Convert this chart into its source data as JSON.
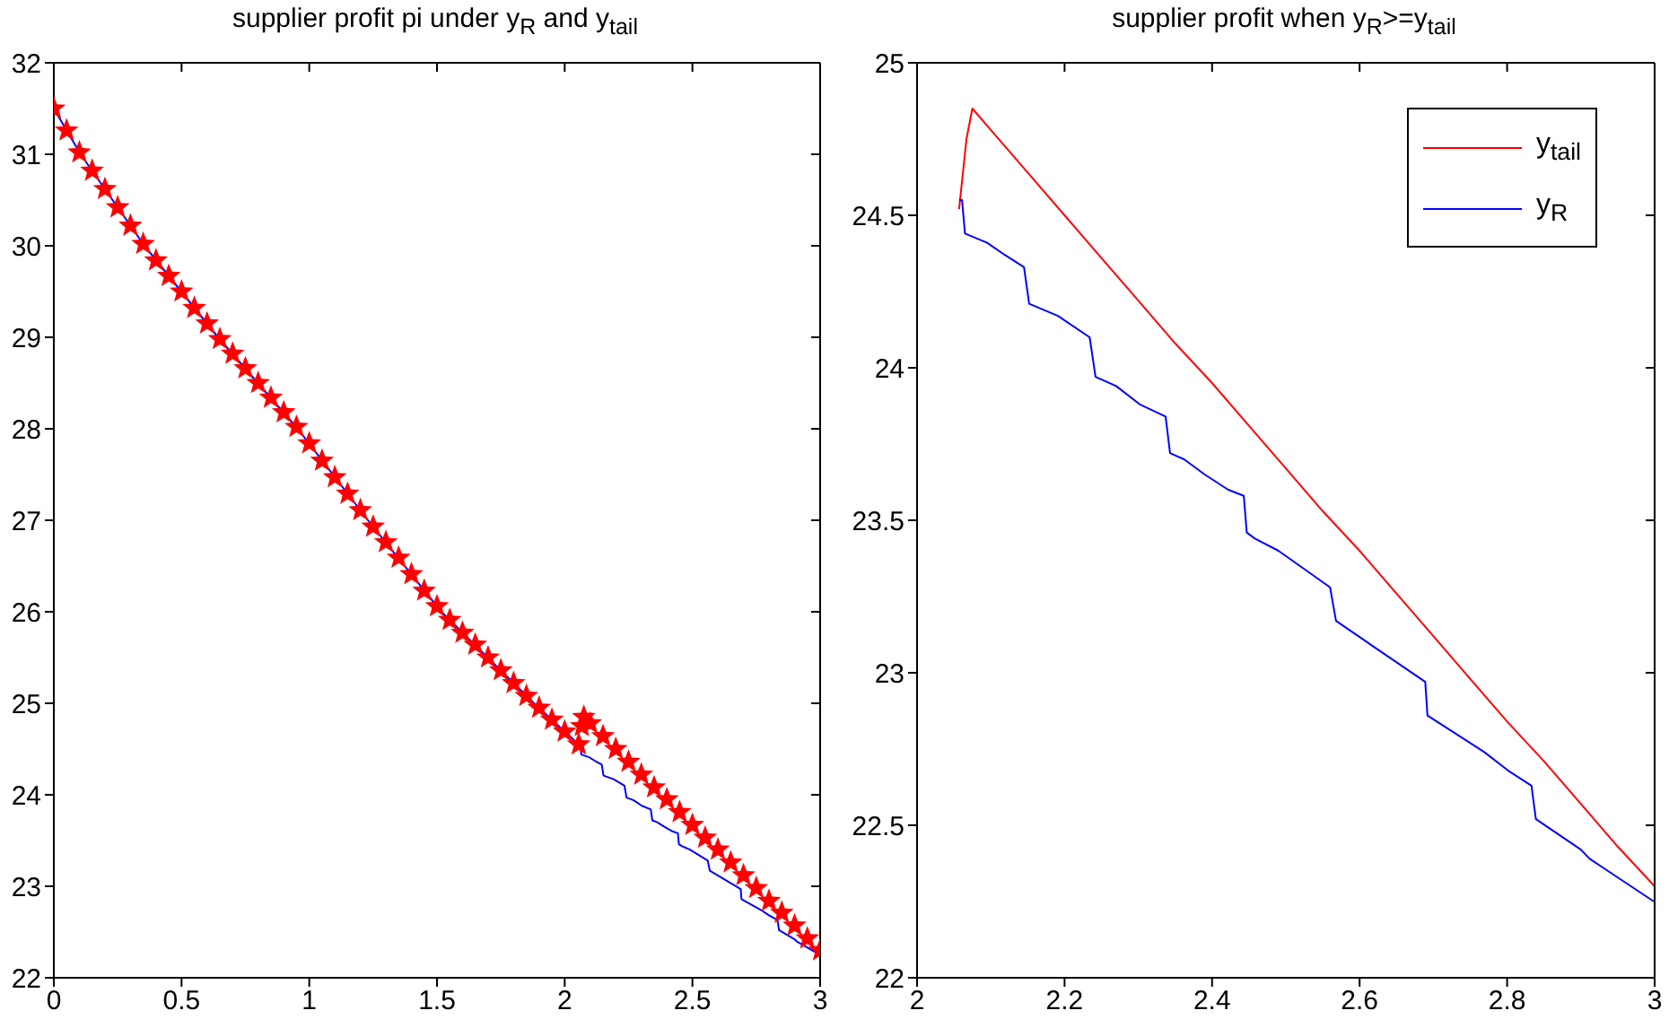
{
  "chart_data": [
    {
      "type": "line",
      "title": "supplier profit pi under y$_{R}$ and y$_{tail}$",
      "xlim": [
        0,
        3
      ],
      "xticks": [
        0,
        0.5,
        1,
        1.5,
        2,
        2.5,
        3
      ],
      "ylim": [
        22,
        32
      ],
      "yticks": [
        22,
        23,
        24,
        25,
        26,
        27,
        28,
        29,
        30,
        31,
        32
      ],
      "series": [
        {
          "type": "scatter",
          "marker": "star",
          "color": "#ff0000",
          "x": [
            0,
            0.05,
            0.1,
            0.15,
            0.2,
            0.25,
            0.3,
            0.35,
            0.4,
            0.45,
            0.5,
            0.55,
            0.6,
            0.65,
            0.7,
            0.75,
            0.8,
            0.85,
            0.9,
            0.95,
            1.0,
            1.05,
            1.1,
            1.15,
            1.2,
            1.25,
            1.3,
            1.35,
            1.4,
            1.45,
            1.5,
            1.55,
            1.6,
            1.65,
            1.7,
            1.75,
            1.8,
            1.85,
            1.9,
            1.95,
            2.0,
            2.055,
            2.067,
            2.075,
            2.1,
            2.15,
            2.2,
            2.25,
            2.3,
            2.35,
            2.4,
            2.45,
            2.5,
            2.55,
            2.6,
            2.65,
            2.7,
            2.75,
            2.8,
            2.85,
            2.9,
            2.95,
            3.0
          ],
          "values": [
            31.5,
            31.26,
            31.02,
            30.82,
            30.62,
            30.42,
            30.22,
            30.02,
            29.84,
            29.67,
            29.5,
            29.32,
            29.15,
            28.98,
            28.82,
            28.66,
            28.5,
            28.34,
            28.18,
            28.02,
            27.84,
            27.65,
            27.47,
            27.29,
            27.11,
            26.93,
            26.76,
            26.59,
            26.41,
            26.23,
            26.06,
            25.91,
            25.77,
            25.64,
            25.5,
            25.36,
            25.22,
            25.08,
            24.95,
            24.82,
            24.69,
            24.55,
            24.75,
            24.85,
            24.78,
            24.64,
            24.5,
            24.36,
            24.22,
            24.08,
            23.95,
            23.81,
            23.67,
            23.53,
            23.4,
            23.26,
            23.12,
            22.98,
            22.84,
            22.71,
            22.57,
            22.43,
            22.3
          ]
        },
        {
          "type": "line",
          "color": "#0000ff",
          "x": [
            0,
            0.105,
            0.355,
            0.643,
            0.955,
            1.23,
            1.517,
            1.88,
            2.055,
            2.061,
            2.065,
            2.095,
            2.119,
            2.145,
            2.152,
            2.191,
            2.234,
            2.242,
            2.27,
            2.302,
            2.337,
            2.343,
            2.362,
            2.39,
            2.422,
            2.443,
            2.447,
            2.458,
            2.49,
            2.56,
            2.568,
            2.689,
            2.692,
            2.769,
            2.801,
            2.833,
            2.839,
            2.9,
            2.912,
            2.999
          ],
          "values": [
            31.5,
            31,
            30,
            29,
            28,
            27,
            26,
            25,
            24.55,
            24.55,
            24.44,
            24.41,
            24.37,
            24.33,
            24.21,
            24.17,
            24.1,
            23.97,
            23.94,
            23.88,
            23.84,
            23.72,
            23.7,
            23.65,
            23.6,
            23.58,
            23.46,
            23.44,
            23.4,
            23.28,
            23.17,
            22.97,
            22.86,
            22.74,
            22.68,
            22.63,
            22.52,
            22.42,
            22.39,
            22.25
          ]
        }
      ]
    },
    {
      "type": "line",
      "title": "supplier profit when y$_{R}$>=y$_{tail}$",
      "xlim": [
        2,
        3
      ],
      "xticks": [
        2,
        2.2,
        2.4,
        2.6,
        2.8,
        3
      ],
      "ylim": [
        22,
        25
      ],
      "yticks": [
        22,
        22.5,
        23,
        23.5,
        24,
        24.5,
        25
      ],
      "legend": "top right",
      "series": [
        {
          "name": "y$_{tail}$",
          "color": "#ff0000",
          "x": [
            2.057,
            2.067,
            2.075,
            2.1,
            2.15,
            2.2,
            2.25,
            2.3,
            2.35,
            2.4,
            2.45,
            2.5,
            2.55,
            2.6,
            2.65,
            2.7,
            2.75,
            2.8,
            2.85,
            2.9,
            2.95,
            3.0
          ],
          "values": [
            24.52,
            24.75,
            24.85,
            24.78,
            24.64,
            24.5,
            24.36,
            24.22,
            24.08,
            23.95,
            23.81,
            23.67,
            23.53,
            23.4,
            23.26,
            23.12,
            22.98,
            22.84,
            22.71,
            22.57,
            22.43,
            22.3
          ]
        },
        {
          "name": "y$_{R}$",
          "color": "#0000ff",
          "x": [
            2.057,
            2.061,
            2.065,
            2.095,
            2.119,
            2.145,
            2.152,
            2.191,
            2.234,
            2.242,
            2.27,
            2.302,
            2.337,
            2.343,
            2.362,
            2.39,
            2.422,
            2.443,
            2.447,
            2.458,
            2.49,
            2.56,
            2.568,
            2.689,
            2.692,
            2.769,
            2.801,
            2.833,
            2.839,
            2.9,
            2.912,
            2.999
          ],
          "values": [
            24.55,
            24.55,
            24.44,
            24.41,
            24.37,
            24.33,
            24.21,
            24.17,
            24.1,
            23.97,
            23.94,
            23.88,
            23.84,
            23.72,
            23.7,
            23.65,
            23.6,
            23.58,
            23.46,
            23.44,
            23.4,
            23.28,
            23.17,
            22.97,
            22.86,
            22.74,
            22.68,
            22.63,
            22.52,
            22.42,
            22.39,
            22.25
          ]
        }
      ]
    }
  ]
}
